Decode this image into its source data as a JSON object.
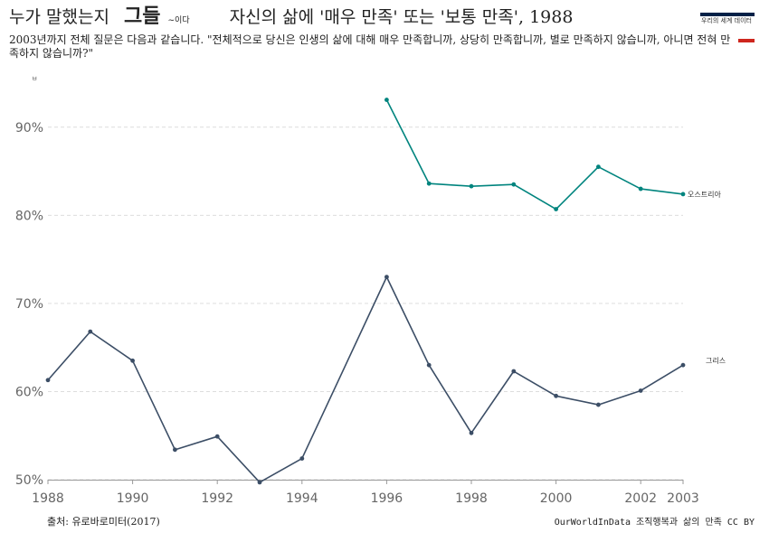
{
  "header": {
    "title_part1": "누가 말했는지",
    "title_part2": "그들",
    "title_part3": "~이다",
    "title_part4": "자신의 삶에 '매우 만족' 또는 '보통 만족', 1988",
    "subtitle": "2003년까지 전체 질문은 다음과 같습니다. \"전체적으로 당신은 인생의 삶에 대해 매우 만족합니까, 상당히 만족합니까, 별로 만족하지 않습니까, 아니면 전혀 만족하지 않습니까?\"",
    "small_mark": "ㅂ"
  },
  "logo": {
    "text": "우리의 세계 데이터",
    "color_top": "#002147",
    "color_bottom": "#ce261e"
  },
  "footer": {
    "source": "출처: 유로바로미터(2017)",
    "credit": "OurWorldInData 조직행복과 삶의 만족 CC BY"
  },
  "chart_data": {
    "type": "line",
    "xlim": [
      1988,
      2003
    ],
    "ylim": [
      50,
      95
    ],
    "grid": true,
    "x_ticks": [
      1988,
      1990,
      1992,
      1994,
      1996,
      1998,
      2000,
      2002,
      2003
    ],
    "y_ticks": [
      50,
      60,
      70,
      80,
      90
    ],
    "y_tick_labels": [
      "50%",
      "60%",
      "70%",
      "80%",
      "90%"
    ],
    "series": [
      {
        "name": "오스트리아",
        "color": "#00847e",
        "points": [
          {
            "x": 1996,
            "y": 93.1
          },
          {
            "x": 1997,
            "y": 83.6
          },
          {
            "x": 1998,
            "y": 83.3
          },
          {
            "x": 1999,
            "y": 83.5
          },
          {
            "x": 2000,
            "y": 80.7
          },
          {
            "x": 2001,
            "y": 85.5
          },
          {
            "x": 2002,
            "y": 83.0
          },
          {
            "x": 2003,
            "y": 82.4
          }
        ]
      },
      {
        "name": "그리스",
        "color": "#3c4e66",
        "points": [
          {
            "x": 1988,
            "y": 61.3
          },
          {
            "x": 1989,
            "y": 66.8
          },
          {
            "x": 1990,
            "y": 63.5
          },
          {
            "x": 1991,
            "y": 53.4
          },
          {
            "x": 1992,
            "y": 54.9
          },
          {
            "x": 1993,
            "y": 49.7
          },
          {
            "x": 1994,
            "y": 52.4
          },
          {
            "x": 1996,
            "y": 73.0
          },
          {
            "x": 1997,
            "y": 63.0
          },
          {
            "x": 1998,
            "y": 55.3
          },
          {
            "x": 1999,
            "y": 62.3
          },
          {
            "x": 2000,
            "y": 59.5
          },
          {
            "x": 2001,
            "y": 58.5
          },
          {
            "x": 2002,
            "y": 60.1
          },
          {
            "x": 2003,
            "y": 63.0
          }
        ]
      }
    ]
  }
}
